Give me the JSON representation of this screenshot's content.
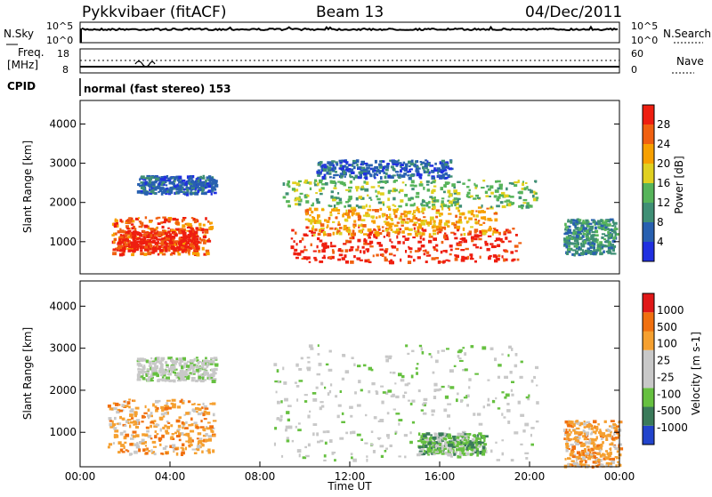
{
  "header": {
    "station": "Pykkvibaer (fitACF)",
    "beam": "Beam 13",
    "date": "04/Dec/2011"
  },
  "top_panel": {
    "left_label": "N.Sky",
    "left_ticks": [
      "10^5",
      "10^0"
    ],
    "right_ticks": [
      "10^5",
      "10^0"
    ],
    "right_label": "N.Search"
  },
  "freq_panel": {
    "left_label_1": "Freq.",
    "left_label_2": "[MHz]",
    "left_ticks": [
      "18",
      "8"
    ],
    "right_ticks": [
      "60",
      "0"
    ],
    "right_label": "Nave"
  },
  "cpid": {
    "label": "CPID",
    "text": "normal (fast stereo) 153"
  },
  "chart_data": [
    {
      "type": "heatmap",
      "name": "power",
      "ylabel": "Slant Range [km]",
      "yticks": [
        "4000",
        "3000",
        "2000",
        "1000"
      ],
      "ylim": [
        180,
        4600
      ],
      "colorbar_label": "Power [dB]",
      "colorbar_ticks": [
        "28",
        "24",
        "20",
        "16",
        "12",
        "8",
        "4"
      ],
      "colorbar_colors": [
        "#2030e0",
        "#2860b0",
        "#3f8f75",
        "#56b45a",
        "#e0d020",
        "#f7a000",
        "#f06010",
        "#ee1e10"
      ],
      "blobs": [
        {
          "t": [
            1.4,
            5.8
          ],
          "r": [
            700,
            1650
          ],
          "level": 6
        },
        {
          "t": [
            1.6,
            5.2
          ],
          "r": [
            800,
            1300
          ],
          "level": 7
        },
        {
          "t": [
            2.5,
            6.0
          ],
          "r": [
            2250,
            2700
          ],
          "level": 1
        },
        {
          "t": [
            9.3,
            19.5
          ],
          "r": [
            500,
            1400
          ],
          "level": 7
        },
        {
          "t": [
            10.0,
            18.5
          ],
          "r": [
            1200,
            1900
          ],
          "level": 5
        },
        {
          "t": [
            9.0,
            20.3
          ],
          "r": [
            1900,
            2600
          ],
          "level": 3
        },
        {
          "t": [
            10.5,
            16.5
          ],
          "r": [
            2650,
            3100
          ],
          "level": 1
        },
        {
          "t": [
            21.5,
            23.8
          ],
          "r": [
            700,
            1600
          ],
          "level": 2
        }
      ]
    },
    {
      "type": "heatmap",
      "name": "velocity",
      "ylabel": "Slant Range [km]",
      "yticks": [
        "4000",
        "3000",
        "2000",
        "1000"
      ],
      "ylim": [
        180,
        4600
      ],
      "colorbar_label": "Velocity [m s-1]",
      "colorbar_ticks": [
        "1000",
        "500",
        "100",
        "25",
        "-25",
        "-100",
        "-500",
        "-1000"
      ],
      "colorbar_colors": [
        "#2244cc",
        "#3a7a5a",
        "#66c040",
        "#c8c8c8",
        "#c8c8c8",
        "#f5a030",
        "#f07010",
        "#e01818"
      ],
      "blobs": [
        {
          "t": [
            1.2,
            5.9
          ],
          "r": [
            500,
            1800
          ],
          "level": 5
        },
        {
          "t": [
            2.5,
            6.0
          ],
          "r": [
            2250,
            2800
          ],
          "level": 3
        },
        {
          "t": [
            8.5,
            20.3
          ],
          "r": [
            350,
            3100
          ],
          "level": 3
        },
        {
          "t": [
            15.0,
            18.0
          ],
          "r": [
            500,
            1000
          ],
          "level": 2
        },
        {
          "t": [
            21.5,
            24.0
          ],
          "r": [
            200,
            1300
          ],
          "level": 5
        }
      ]
    }
  ],
  "x_axis": {
    "ticks": [
      "00:00",
      "04:00",
      "08:00",
      "12:00",
      "16:00",
      "20:00",
      "00:00"
    ],
    "label": "Time UT"
  }
}
